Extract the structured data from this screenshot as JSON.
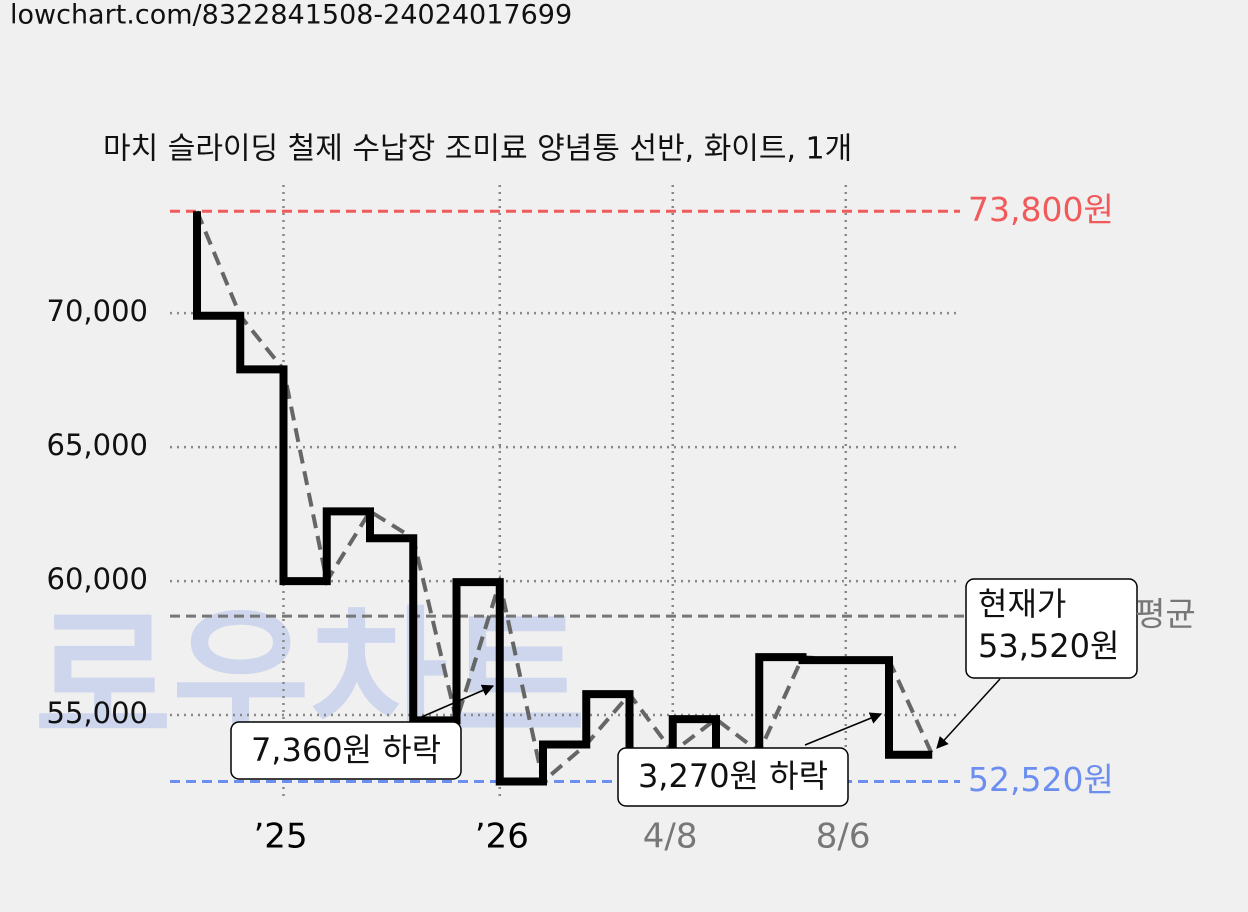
{
  "url": "lowchart.com/8322841508-24024017699",
  "watermark": "로우차트",
  "chart_data": {
    "type": "step",
    "title": "마치 슬라이딩 철제 수납장 조미료 양념통 선반, 화이트, 1개",
    "categories": [
      null,
      null,
      "’25",
      null,
      null,
      null,
      null,
      "’26",
      null,
      null,
      null,
      "4/8",
      null,
      null,
      null,
      "8/6",
      null,
      null
    ],
    "category_colors": [
      "#000",
      "#000",
      "#000",
      "#000",
      "#000",
      "#000",
      "#000",
      "#000",
      "#000",
      "#000",
      "#000",
      "#777",
      "#000",
      "#000",
      "#000",
      "#777",
      "#000",
      "#000"
    ],
    "series": [
      {
        "color": "#000000",
        "trend_color": "#666666",
        "values": [
          73800,
          69900,
          67900,
          60000,
          62600,
          61600,
          54800,
          59960,
          52520,
          53900,
          55780,
          53620,
          54850,
          53620,
          57160,
          57050,
          57050,
          53520
        ]
      }
    ],
    "ylim": [
      51830,
      74780
    ],
    "yticks": [
      {
        "value": 55000,
        "label": "55,000"
      },
      {
        "value": 60000,
        "label": "60,000"
      },
      {
        "value": 65000,
        "label": "65,000"
      },
      {
        "value": 70000,
        "label": "70,000"
      }
    ],
    "grid": true,
    "reference_lines": [
      {
        "value": 73800,
        "label": "73,800원",
        "color": "#f05a5a"
      },
      {
        "value": 52520,
        "label": "52,520원",
        "color": "#6b8ef0"
      },
      {
        "value": 58690,
        "label": "평균",
        "color": "#777777"
      }
    ],
    "annotations": [
      {
        "text": "7,360원 하락"
      },
      {
        "text": "3,270원 하락"
      },
      {
        "lines": [
          "현재가",
          "53,520원"
        ]
      }
    ]
  }
}
